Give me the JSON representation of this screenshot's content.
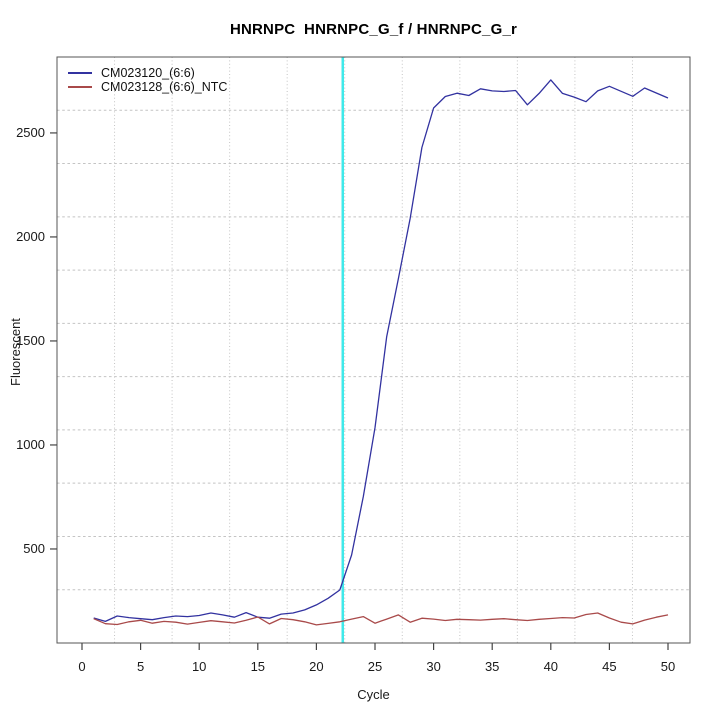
{
  "title": "HNRNPC  HNRNPC_G_f / HNRNPC_G_r",
  "axes": {
    "xlabel": "Cycle",
    "ylabel": "Fluorescent"
  },
  "colors": {
    "series_positive": "#3232a0",
    "series_ntc": "#a94a4a",
    "threshold_line": "#3fe9ea",
    "grid": "#c4c4c4",
    "box": "#555555",
    "tick": "#444444",
    "text": "#1a1a1a"
  },
  "chart_data": {
    "type": "line",
    "title": "HNRNPC  HNRNPC_G_f / HNRNPC_G_r",
    "xlabel": "Cycle",
    "ylabel": "Fluorescent",
    "xlim": [
      -2.133,
      51.877
    ],
    "ylim": [
      48,
      2865
    ],
    "x_ticks": [
      0,
      5,
      10,
      15,
      20,
      25,
      30,
      35,
      40,
      45,
      50
    ],
    "y_ticks": [
      500,
      1000,
      1500,
      2000,
      2500
    ],
    "grid": "on, dotted, 11 equal divisions per axis (not tick-aligned)",
    "legend_position": "top-left",
    "threshold_cycle_line": {
      "x": 22.25,
      "orientation": "vertical",
      "color": "#3fe9ea"
    },
    "x": [
      1,
      2,
      3,
      4,
      5,
      6,
      7,
      8,
      9,
      10,
      11,
      12,
      13,
      14,
      15,
      16,
      17,
      18,
      19,
      20,
      21,
      22,
      23,
      24,
      25,
      26,
      27,
      28,
      29,
      30,
      31,
      32,
      33,
      34,
      35,
      36,
      37,
      38,
      39,
      40,
      41,
      42,
      43,
      44,
      45,
      46,
      47,
      48,
      49,
      50
    ],
    "series": [
      {
        "name": "CM023120_(6:6)",
        "color": "#3232a0",
        "values": [
          168,
          152,
          178,
          170,
          165,
          160,
          170,
          178,
          175,
          180,
          192,
          183,
          172,
          194,
          172,
          167,
          187,
          192,
          207,
          231,
          263,
          303,
          471,
          752,
          1083,
          1521,
          1800,
          2090,
          2430,
          2620,
          2675,
          2691,
          2680,
          2712,
          2702,
          2699,
          2704,
          2635,
          2690,
          2755,
          2690,
          2672,
          2650,
          2702,
          2724,
          2700,
          2676,
          2716,
          2692,
          2668
        ]
      },
      {
        "name": "CM023128_(6:6)_NTC",
        "color": "#a94a4a",
        "values": [
          165,
          141,
          137,
          150,
          157,
          143,
          152,
          148,
          139,
          147,
          155,
          150,
          144,
          157,
          173,
          140,
          166,
          160,
          150,
          135,
          142,
          150,
          163,
          175,
          143,
          163,
          183,
          148,
          167,
          163,
          156,
          162,
          160,
          158,
          162,
          165,
          160,
          156,
          162,
          166,
          170,
          168,
          185,
          192,
          168,
          148,
          140,
          158,
          172,
          183
        ]
      }
    ]
  }
}
